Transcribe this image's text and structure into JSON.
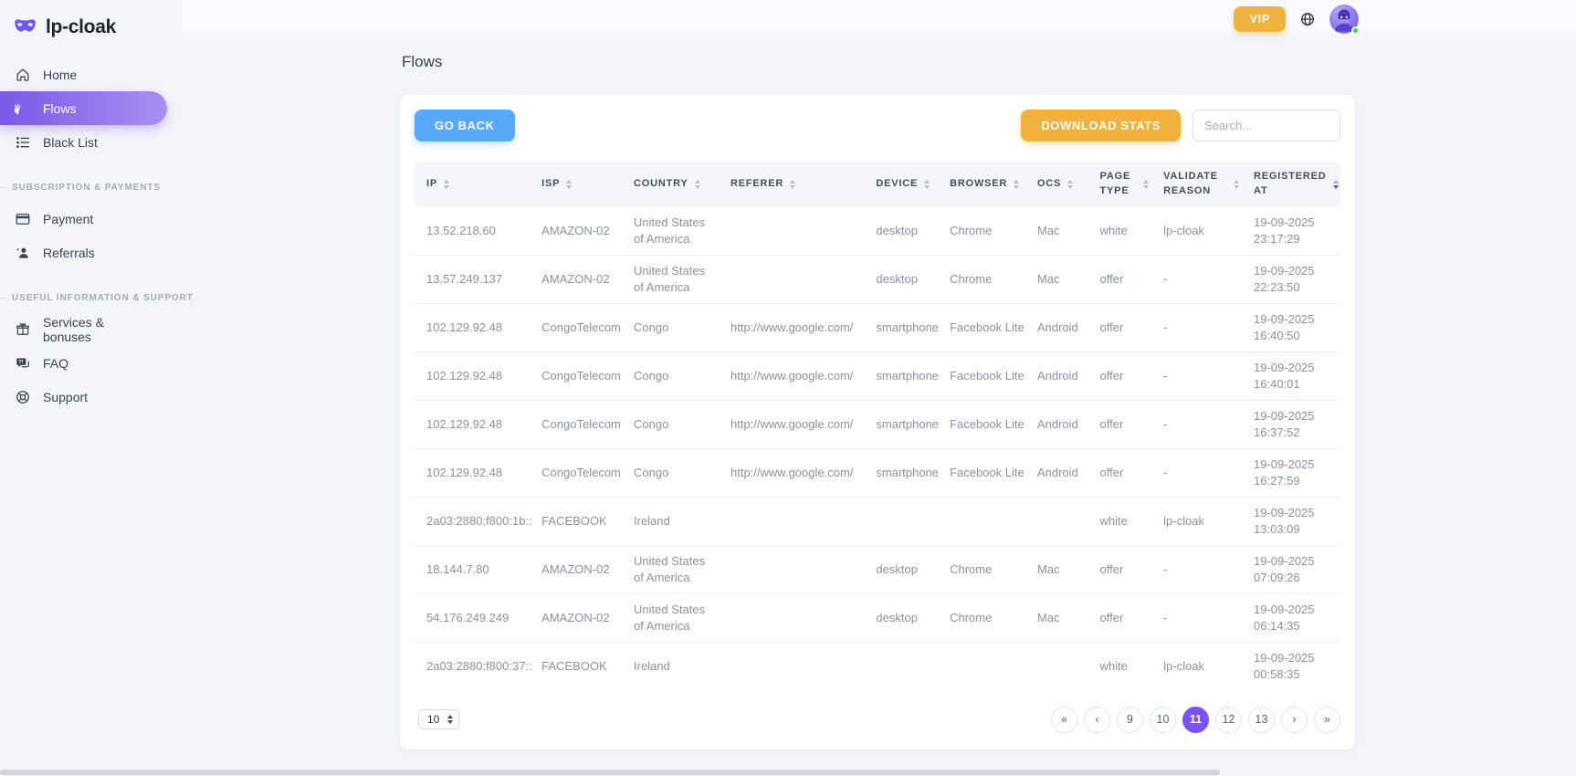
{
  "brand": {
    "name": "lp-cloak",
    "logo_icon": "mask-icon"
  },
  "header": {
    "vip_label": "VIP",
    "icons": [
      "globe-icon",
      "avatar"
    ],
    "online_status": "online"
  },
  "sidebar": {
    "items": [
      {
        "label": "Home",
        "icon": "home-icon",
        "active": false
      },
      {
        "label": "Flows",
        "icon": "flows-icon",
        "active": true
      },
      {
        "label": "Black List",
        "icon": "list-icon",
        "active": false
      },
      {
        "label": "Payment",
        "icon": "credit-card-icon",
        "active": false
      },
      {
        "label": "Referrals",
        "icon": "person-add-icon",
        "active": false
      },
      {
        "label": "Services & bonuses",
        "icon": "gift-icon",
        "active": false
      },
      {
        "label": "FAQ",
        "icon": "chat-question-icon",
        "active": false
      },
      {
        "label": "Support",
        "icon": "lifebuoy-icon",
        "active": false
      }
    ],
    "sections": {
      "payments": "SUBSCRIPTION & PAYMENTS",
      "support": "USEFUL INFORMATION & SUPPORT"
    }
  },
  "page": {
    "title": "Flows"
  },
  "toolbar": {
    "go_back_label": "GO BACK",
    "download_stats_label": "DOWNLOAD STATS",
    "search_placeholder": "Search..."
  },
  "table": {
    "columns": [
      {
        "key": "ip",
        "label": "IP"
      },
      {
        "key": "isp",
        "label": "ISP"
      },
      {
        "key": "country",
        "label": "COUNTRY"
      },
      {
        "key": "referer",
        "label": "REFERER"
      },
      {
        "key": "device",
        "label": "DEVICE"
      },
      {
        "key": "browser",
        "label": "BROWSER"
      },
      {
        "key": "ocs",
        "label": "OCS"
      },
      {
        "key": "page_type",
        "label": "PAGE TYPE"
      },
      {
        "key": "validate_reason",
        "label": "VALIDATE REASON"
      },
      {
        "key": "registered_at",
        "label": "REGISTERED AT",
        "sort_active": true
      }
    ],
    "rows": [
      [
        "13.52.218.60",
        "AMAZON-02",
        "United States of America",
        "",
        "desktop",
        "Chrome",
        "Mac",
        "white",
        "lp-cloak",
        "19-09-2025 23:17:29"
      ],
      [
        "13.57.249.137",
        "AMAZON-02",
        "United States of America",
        "",
        "desktop",
        "Chrome",
        "Mac",
        "offer",
        "-",
        "19-09-2025 22:23:50"
      ],
      [
        "102.129.92.48",
        "CongoTelecom",
        "Congo",
        "http://www.google.com/",
        "smartphone",
        "Facebook Lite",
        "Android",
        "offer",
        "-",
        "19-09-2025 16:40:50"
      ],
      [
        "102.129.92.48",
        "CongoTelecom",
        "Congo",
        "http://www.google.com/",
        "smartphone",
        "Facebook Lite",
        "Android",
        "offer",
        "-",
        "19-09-2025 16:40:01"
      ],
      [
        "102.129.92.48",
        "CongoTelecom",
        "Congo",
        "http://www.google.com/",
        "smartphone",
        "Facebook Lite",
        "Android",
        "offer",
        "-",
        "19-09-2025 16:37:52"
      ],
      [
        "102.129.92.48",
        "CongoTelecom",
        "Congo",
        "http://www.google.com/",
        "smartphone",
        "Facebook Lite",
        "Android",
        "offer",
        "-",
        "19-09-2025 16:27:59"
      ],
      [
        "2a03:2880:f800:1b::",
        "FACEBOOK",
        "Ireland",
        "",
        "",
        "",
        "",
        "white",
        "lp-cloak",
        "19-09-2025 13:03:09"
      ],
      [
        "18.144.7.80",
        "AMAZON-02",
        "United States of America",
        "",
        "desktop",
        "Chrome",
        "Mac",
        "offer",
        "-",
        "19-09-2025 07:09:26"
      ],
      [
        "54.176.249.249",
        "AMAZON-02",
        "United States of America",
        "",
        "desktop",
        "Chrome",
        "Mac",
        "offer",
        "-",
        "19-09-2025 06:14:35"
      ],
      [
        "2a03:2880:f800:37::",
        "FACEBOOK",
        "Ireland",
        "",
        "",
        "",
        "",
        "white",
        "lp-cloak",
        "19-09-2025 00:58:35"
      ]
    ]
  },
  "pagination": {
    "page_size": "10",
    "active_page": "11",
    "items": [
      {
        "label": "«",
        "name": "first-page-button"
      },
      {
        "label": "‹",
        "name": "prev-page-button"
      },
      {
        "label": "9"
      },
      {
        "label": "10"
      },
      {
        "label": "11",
        "active": true
      },
      {
        "label": "12"
      },
      {
        "label": "13"
      },
      {
        "label": "›",
        "name": "next-page-button"
      },
      {
        "label": "»",
        "name": "last-page-button"
      }
    ]
  },
  "colors": {
    "accent_purple": "#7a52f3",
    "accent_blue": "#58a9f8",
    "accent_orange": "#f0b240",
    "active_sort_blue": "#3a56ee",
    "online_green": "#43d15e",
    "background": "#f4f5f9"
  }
}
